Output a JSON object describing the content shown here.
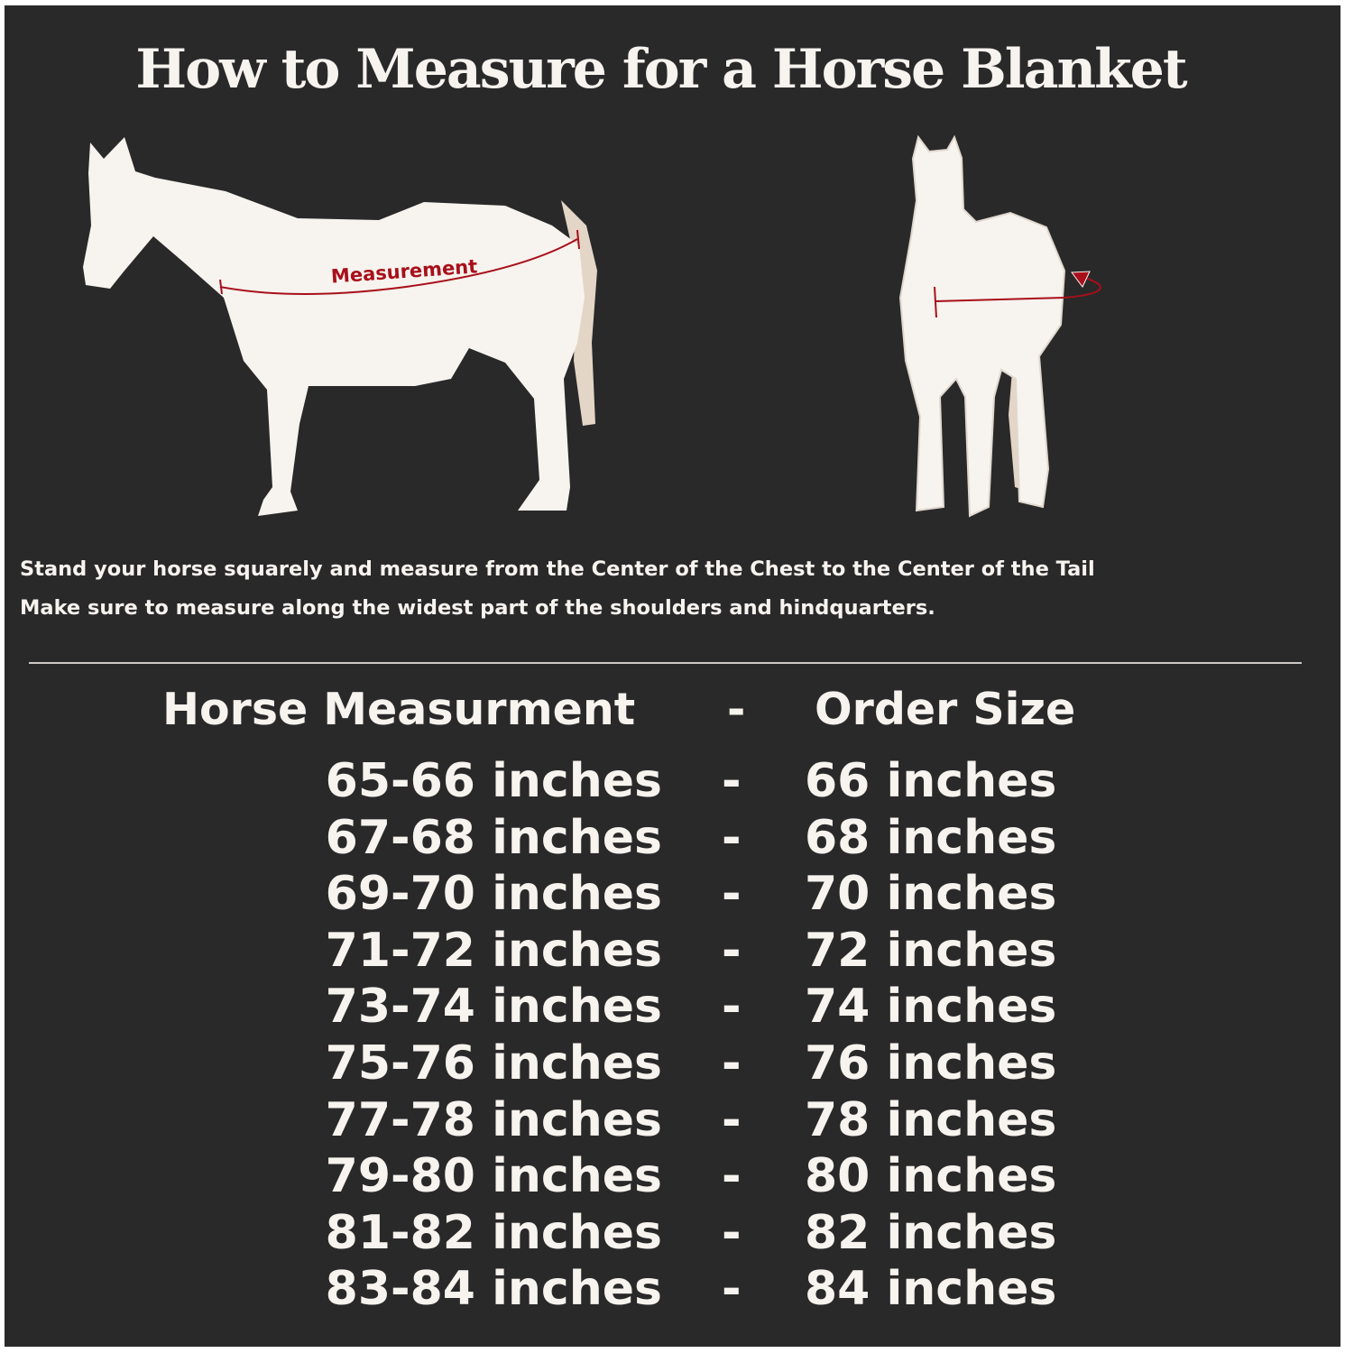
{
  "title": "How to Measure for a Horse Blanket",
  "diagram": {
    "measurement_label": "Measurement",
    "colors": {
      "background": "#2a292a",
      "horse": "#f7f3ee",
      "tail": "#e3d6c6",
      "measure_line": "#a80f1a"
    }
  },
  "instructions": [
    "Stand your horse squarely and measure from the Center of the Chest to the Center of the Tail",
    "Make sure to measure along the widest part of the shoulders and hindquarters."
  ],
  "table": {
    "header": {
      "left": "Horse Measurment",
      "separator": "-",
      "right": "Order Size"
    },
    "rows": [
      {
        "measurement": "65-66 inches",
        "separator": "-",
        "size": "66 inches"
      },
      {
        "measurement": "67-68 inches",
        "separator": "-",
        "size": "68 inches"
      },
      {
        "measurement": "69-70 inches",
        "separator": "-",
        "size": "70 inches"
      },
      {
        "measurement": "71-72 inches",
        "separator": "-",
        "size": "72 inches"
      },
      {
        "measurement": "73-74 inches",
        "separator": "-",
        "size": "74 inches"
      },
      {
        "measurement": "75-76 inches",
        "separator": "-",
        "size": "76 inches"
      },
      {
        "measurement": "77-78 inches",
        "separator": "-",
        "size": "78 inches"
      },
      {
        "measurement": "79-80 inches",
        "separator": "-",
        "size": "80 inches"
      },
      {
        "measurement": "81-82 inches",
        "separator": "-",
        "size": "82 inches"
      },
      {
        "measurement": "83-84 inches",
        "separator": "-",
        "size": "84 inches"
      }
    ]
  }
}
